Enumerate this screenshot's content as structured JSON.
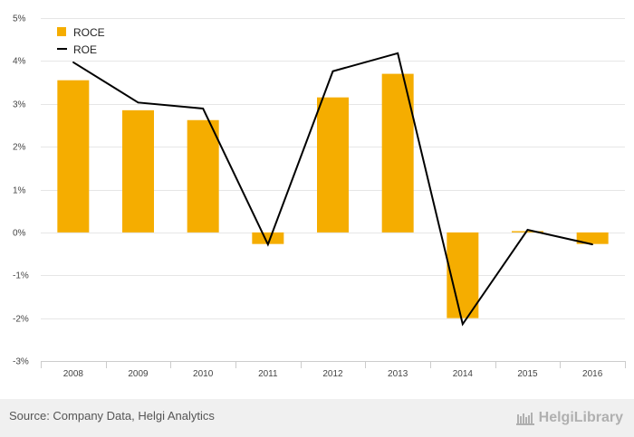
{
  "chart_data": {
    "type": "bar",
    "categories": [
      "2008",
      "2009",
      "2010",
      "2011",
      "2012",
      "2013",
      "2014",
      "2015",
      "2016"
    ],
    "series": [
      {
        "name": "ROCE",
        "type": "bar",
        "color": "#f5ad00",
        "values": [
          3.55,
          2.85,
          2.62,
          -0.27,
          3.15,
          3.7,
          -2.0,
          0.03,
          -0.27
        ]
      },
      {
        "name": "ROE",
        "type": "line",
        "color": "#000000",
        "values": [
          3.97,
          3.03,
          2.89,
          -0.28,
          3.76,
          4.18,
          -2.14,
          0.06,
          -0.28
        ]
      }
    ],
    "ylim": [
      -3,
      5
    ],
    "yticks": [
      -3,
      -2,
      -1,
      0,
      1,
      2,
      3,
      4,
      5
    ],
    "ytick_labels": [
      "-3%",
      "-2%",
      "-1%",
      "0%",
      "1%",
      "2%",
      "3%",
      "4%",
      "5%"
    ],
    "title": "",
    "xlabel": "",
    "ylabel": "",
    "grid": true,
    "legend_position": "top-left"
  },
  "footer": {
    "source": "Source: Company Data, Helgi Analytics",
    "brand": "HelgiLibrary"
  }
}
